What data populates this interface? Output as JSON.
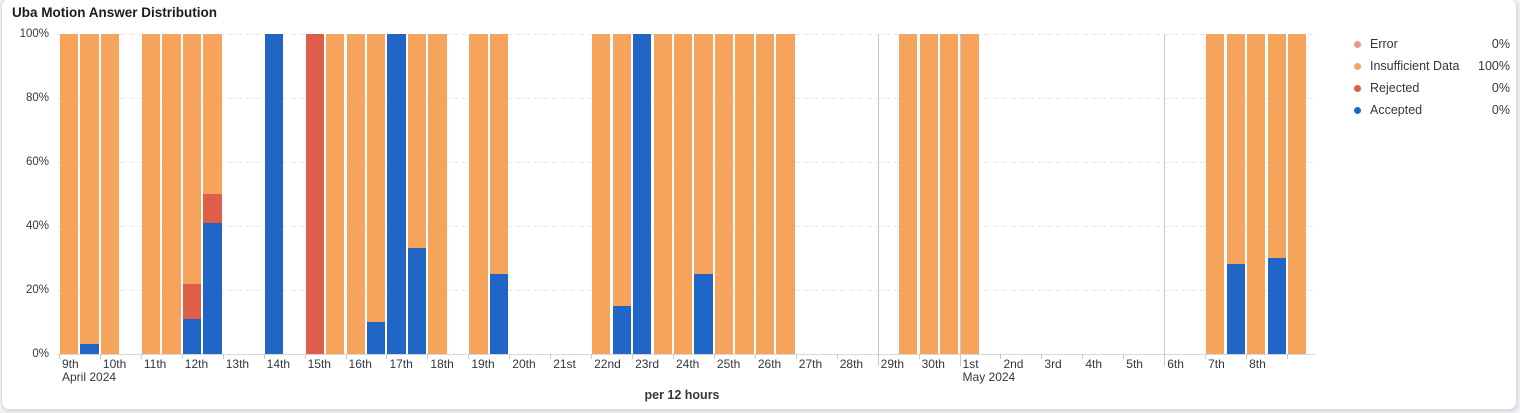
{
  "panel": {
    "title": "Uba Motion Answer Distribution"
  },
  "colors": {
    "error": "#E99A8C",
    "insufficient": "#F6A35C",
    "rejected": "#DE5E4A",
    "accepted": "#2166C6",
    "grid": "#e7e9ed",
    "axis_text": "#343741"
  },
  "legend": {
    "position": "right",
    "items": [
      {
        "key": "error",
        "label": "Error",
        "value": "0%"
      },
      {
        "key": "insufficient",
        "label": "Insufficient Data",
        "value": "100%"
      },
      {
        "key": "rejected",
        "label": "Rejected",
        "value": "0%"
      },
      {
        "key": "accepted",
        "label": "Accepted",
        "value": "0%"
      }
    ]
  },
  "chart_data": {
    "type": "bar",
    "subtype": "stacked-percentage-time-histogram",
    "title": "Uba Motion Answer Distribution",
    "xlabel": "per 12 hours",
    "ylabel": "",
    "ylim": [
      0,
      100
    ],
    "grid": "horizontal-dashed",
    "stack_order_bottom_to_top": [
      "accepted",
      "rejected",
      "error",
      "insufficient"
    ],
    "y_ticks": [
      "100%",
      "80%",
      "60%",
      "40%",
      "20%",
      "0%"
    ],
    "x_ticks": [
      {
        "day": 0,
        "label": "9th",
        "sublabel": "April 2024"
      },
      {
        "day": 1,
        "label": "10th"
      },
      {
        "day": 2,
        "label": "11th"
      },
      {
        "day": 3,
        "label": "12th"
      },
      {
        "day": 4,
        "label": "13th"
      },
      {
        "day": 5,
        "label": "14th"
      },
      {
        "day": 6,
        "label": "15th"
      },
      {
        "day": 7,
        "label": "16th"
      },
      {
        "day": 8,
        "label": "17th"
      },
      {
        "day": 9,
        "label": "18th"
      },
      {
        "day": 10,
        "label": "19th"
      },
      {
        "day": 11,
        "label": "20th"
      },
      {
        "day": 12,
        "label": "21st"
      },
      {
        "day": 13,
        "label": "22nd"
      },
      {
        "day": 14,
        "label": "23rd"
      },
      {
        "day": 15,
        "label": "24th"
      },
      {
        "day": 16,
        "label": "25th"
      },
      {
        "day": 17,
        "label": "26th"
      },
      {
        "day": 18,
        "label": "27th"
      },
      {
        "day": 19,
        "label": "28th"
      },
      {
        "day": 20,
        "label": "29th"
      },
      {
        "day": 21,
        "label": "30th"
      },
      {
        "day": 22,
        "label": "1st",
        "sublabel": "May 2024"
      },
      {
        "day": 23,
        "label": "2nd"
      },
      {
        "day": 24,
        "label": "3rd"
      },
      {
        "day": 25,
        "label": "4th"
      },
      {
        "day": 26,
        "label": "5th"
      },
      {
        "day": 27,
        "label": "6th"
      },
      {
        "day": 28,
        "label": "7th"
      },
      {
        "day": 29,
        "label": "8th"
      },
      {
        "day": 30,
        "label": ""
      }
    ],
    "day_marker_lines": [
      {
        "day": 20
      },
      {
        "day": 22
      },
      {
        "day": 27
      }
    ],
    "bars": [
      {
        "slot": 0,
        "date": "Apr 9 00:00",
        "insufficient": 100
      },
      {
        "slot": 1,
        "date": "Apr 9 12:00",
        "accepted": 3,
        "insufficient": 97
      },
      {
        "slot": 2,
        "date": "Apr 10 00:00",
        "insufficient": 100
      },
      {
        "slot": 4,
        "date": "Apr 11 00:00",
        "insufficient": 100
      },
      {
        "slot": 5,
        "date": "Apr 11 12:00",
        "insufficient": 100
      },
      {
        "slot": 6,
        "date": "Apr 12 00:00",
        "accepted": 11,
        "rejected": 11,
        "insufficient": 78
      },
      {
        "slot": 7,
        "date": "Apr 12 12:00",
        "accepted": 41,
        "rejected": 9,
        "insufficient": 50
      },
      {
        "slot": 10,
        "date": "Apr 14 00:00",
        "accepted": 100
      },
      {
        "slot": 12,
        "date": "Apr 15 00:00",
        "rejected": 100
      },
      {
        "slot": 13,
        "date": "Apr 15 12:00",
        "insufficient": 100
      },
      {
        "slot": 14,
        "date": "Apr 16 00:00",
        "insufficient": 100
      },
      {
        "slot": 15,
        "date": "Apr 16 12:00",
        "accepted": 10,
        "insufficient": 90
      },
      {
        "slot": 16,
        "date": "Apr 17 00:00",
        "accepted": 100
      },
      {
        "slot": 17,
        "date": "Apr 17 12:00",
        "accepted": 33,
        "insufficient": 67
      },
      {
        "slot": 18,
        "date": "Apr 18 00:00",
        "insufficient": 100
      },
      {
        "slot": 20,
        "date": "Apr 19 00:00",
        "insufficient": 100
      },
      {
        "slot": 21,
        "date": "Apr 19 12:00",
        "accepted": 25,
        "insufficient": 75
      },
      {
        "slot": 26,
        "date": "Apr 22 00:00",
        "insufficient": 100
      },
      {
        "slot": 27,
        "date": "Apr 22 12:00",
        "accepted": 15,
        "insufficient": 85
      },
      {
        "slot": 28,
        "date": "Apr 23 00:00",
        "accepted": 100
      },
      {
        "slot": 29,
        "date": "Apr 23 12:00",
        "insufficient": 100
      },
      {
        "slot": 30,
        "date": "Apr 24 00:00",
        "insufficient": 100
      },
      {
        "slot": 31,
        "date": "Apr 24 12:00",
        "accepted": 25,
        "insufficient": 75
      },
      {
        "slot": 32,
        "date": "Apr 25 00:00",
        "insufficient": 100
      },
      {
        "slot": 33,
        "date": "Apr 25 12:00",
        "insufficient": 100
      },
      {
        "slot": 34,
        "date": "Apr 26 00:00",
        "insufficient": 100
      },
      {
        "slot": 35,
        "date": "Apr 26 12:00",
        "insufficient": 100
      },
      {
        "slot": 41,
        "date": "Apr 29 12:00",
        "insufficient": 100
      },
      {
        "slot": 42,
        "date": "Apr 30 00:00",
        "insufficient": 100
      },
      {
        "slot": 43,
        "date": "Apr 30 12:00",
        "insufficient": 100
      },
      {
        "slot": 44,
        "date": "May 1 00:00",
        "insufficient": 100
      },
      {
        "slot": 56,
        "date": "May 7 00:00",
        "insufficient": 100
      },
      {
        "slot": 57,
        "date": "May 7 12:00",
        "accepted": 28,
        "insufficient": 72
      },
      {
        "slot": 58,
        "date": "May 8 00:00",
        "insufficient": 100
      },
      {
        "slot": 59,
        "date": "May 8 12:00",
        "accepted": 30,
        "insufficient": 70
      },
      {
        "slot": 60,
        "date": "May 9 00:00",
        "insufficient": 100
      }
    ]
  }
}
